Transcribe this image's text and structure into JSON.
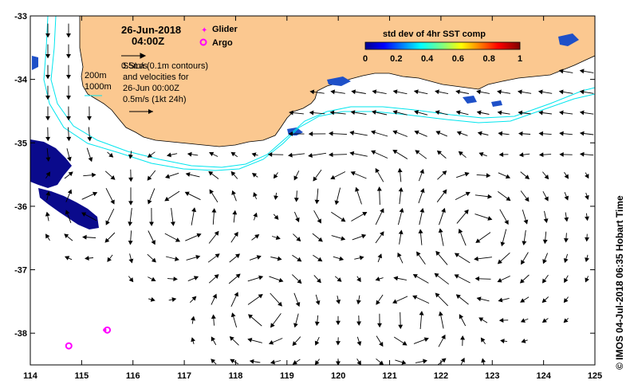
{
  "header": {
    "date": "26-Jun-2018",
    "time": "04:00Z",
    "scale_label": "0.5m/s"
  },
  "legend_markers": {
    "glider": "Glider",
    "argo": "Argo",
    "glider_color": "#ff00ff",
    "argo_color": "#ff00ff"
  },
  "colorbar": {
    "title": "std dev of 4hr SST comp",
    "ticks": [
      "0",
      "0.2",
      "0.4",
      "0.6",
      "0.8",
      "1"
    ]
  },
  "contours_note": {
    "line1": "SSLa (0.1m contours)",
    "line2": "and velocities for",
    "line3": "26-Jun 00:00Z",
    "line4": "0.5m/s (1kt 24h)",
    "bathy_200": "200m",
    "bathy_1000": "1000m"
  },
  "axes": {
    "x_ticks": [
      "114",
      "115",
      "116",
      "117",
      "118",
      "119",
      "120",
      "121",
      "122",
      "123",
      "124",
      "125"
    ],
    "y_ticks": [
      "-33",
      "-34",
      "-35",
      "-36",
      "-37",
      "-38"
    ],
    "x_range": [
      114,
      125
    ],
    "y_range": [
      -38.5,
      -33
    ]
  },
  "credit": "© IMOS 04-Jul-2018 06:35 Hobart Time",
  "colors": {
    "land": "#fbc890",
    "bathymetry": "#00e5ee",
    "arrows": "#000000"
  },
  "argo_points": [
    {
      "lon": 115.5,
      "lat": -37.95
    },
    {
      "lon": 114.75,
      "lat": -38.2
    }
  ],
  "glider_points": [
    {
      "lon": 115.45,
      "lat": -37.95
    }
  ]
}
